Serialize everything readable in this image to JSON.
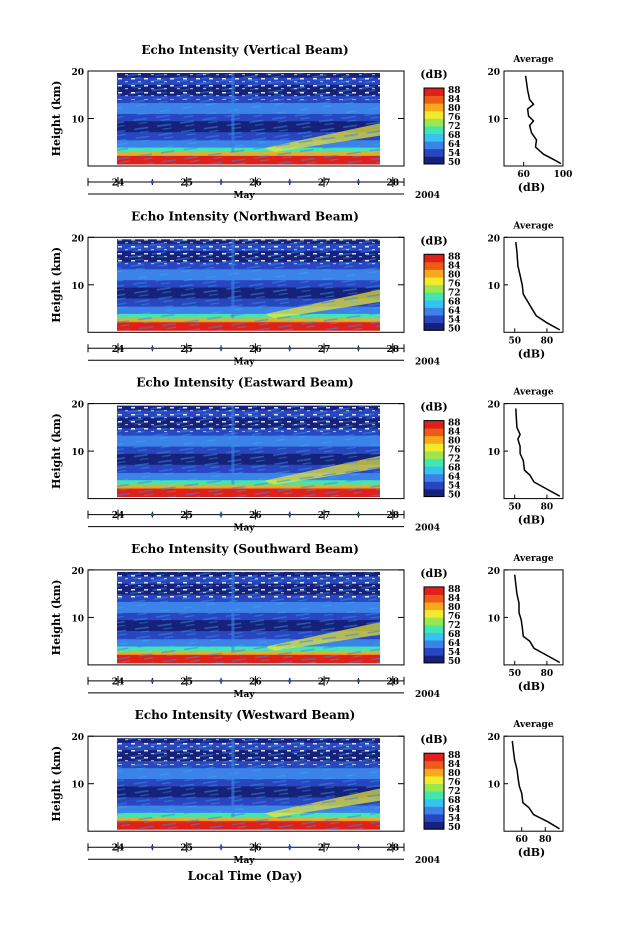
{
  "figure": {
    "x_axis_title": "Local Time (Day)",
    "month_label": "May",
    "year_label": "2004"
  },
  "colorbar": {
    "unit": "(dB)",
    "ticks": [
      "50",
      "54",
      "64",
      "68",
      "72",
      "76",
      "80",
      "84",
      "88"
    ],
    "colors": [
      "#16217a",
      "#2746bf",
      "#3b83e8",
      "#35c4f2",
      "#44e6b0",
      "#9ce64f",
      "#f2ea2c",
      "#f7a81d",
      "#ee5a17",
      "#e0201a"
    ]
  },
  "chart_data": [
    {
      "type": "heatmap",
      "title": "Echo Intensity (Vertical Beam)",
      "xlabel": "May",
      "ylabel": "Height (km)",
      "x_ticks": [
        "24",
        "25",
        "26",
        "27",
        "28"
      ],
      "y_ticks": [
        "10",
        "20"
      ],
      "xlim": [
        24,
        28.6
      ],
      "ylim": [
        0,
        20
      ],
      "colorbar_range": [
        50,
        88
      ],
      "colorbar_unit": "dB",
      "profile": {
        "title": "Average",
        "xlabel": "(dB)",
        "x_ticks": [
          "60",
          "100"
        ],
        "xlim": [
          40,
          100
        ],
        "ylim": [
          0,
          20
        ],
        "y_ticks": [
          "10",
          "20"
        ],
        "points": [
          [
            98,
            0.5
          ],
          [
            92,
            1.2
          ],
          [
            80,
            2.5
          ],
          [
            72,
            4
          ],
          [
            73,
            5.5
          ],
          [
            68,
            7
          ],
          [
            66,
            8.5
          ],
          [
            70,
            9.5
          ],
          [
            65,
            10.5
          ],
          [
            64,
            12
          ],
          [
            70,
            13
          ],
          [
            66,
            14
          ],
          [
            64,
            16
          ],
          [
            62,
            19
          ]
        ]
      }
    },
    {
      "type": "heatmap",
      "title": "Echo Intensity (Northward Beam)",
      "xlabel": "May",
      "ylabel": "Height (km)",
      "x_ticks": [
        "24",
        "25",
        "26",
        "27",
        "28"
      ],
      "y_ticks": [
        "10",
        "20"
      ],
      "xlim": [
        24,
        28.6
      ],
      "ylim": [
        0,
        20
      ],
      "colorbar_range": [
        50,
        88
      ],
      "colorbar_unit": "dB",
      "profile": {
        "title": "Average",
        "xlabel": "(dB)",
        "x_ticks": [
          "50",
          "80"
        ],
        "xlim": [
          40,
          95
        ],
        "ylim": [
          0,
          20
        ],
        "y_ticks": [
          "10",
          "20"
        ],
        "points": [
          [
            92,
            0.5
          ],
          [
            80,
            2
          ],
          [
            70,
            3.5
          ],
          [
            66,
            5
          ],
          [
            62,
            6.5
          ],
          [
            58,
            8
          ],
          [
            57,
            10
          ],
          [
            55,
            12
          ],
          [
            53,
            14
          ],
          [
            52,
            17
          ],
          [
            51,
            19
          ]
        ]
      }
    },
    {
      "type": "heatmap",
      "title": "Echo Intensity (Eastward Beam)",
      "xlabel": "May",
      "ylabel": "Height (km)",
      "x_ticks": [
        "24",
        "25",
        "26",
        "27",
        "28"
      ],
      "y_ticks": [
        "10",
        "20"
      ],
      "xlim": [
        24,
        28.6
      ],
      "ylim": [
        0,
        20
      ],
      "colorbar_range": [
        50,
        88
      ],
      "colorbar_unit": "dB",
      "profile": {
        "title": "Average",
        "xlabel": "(dB)",
        "x_ticks": [
          "50",
          "80"
        ],
        "xlim": [
          40,
          95
        ],
        "ylim": [
          0,
          20
        ],
        "y_ticks": [
          "10",
          "20"
        ],
        "points": [
          [
            92,
            0.5
          ],
          [
            80,
            2
          ],
          [
            68,
            3.5
          ],
          [
            64,
            5
          ],
          [
            59,
            6
          ],
          [
            58,
            8
          ],
          [
            55,
            9.5
          ],
          [
            55,
            11
          ],
          [
            53,
            12.5
          ],
          [
            55,
            13.5
          ],
          [
            52,
            15
          ],
          [
            51,
            19
          ]
        ]
      }
    },
    {
      "type": "heatmap",
      "title": "Echo Intensity (Southward Beam)",
      "xlabel": "May",
      "ylabel": "Height (km)",
      "x_ticks": [
        "24",
        "25",
        "26",
        "27",
        "28"
      ],
      "y_ticks": [
        "10",
        "20"
      ],
      "xlim": [
        24,
        28.6
      ],
      "ylim": [
        0,
        20
      ],
      "colorbar_range": [
        50,
        88
      ],
      "colorbar_unit": "dB",
      "profile": {
        "title": "Average",
        "xlabel": "(dB)",
        "x_ticks": [
          "50",
          "80"
        ],
        "xlim": [
          40,
          95
        ],
        "ylim": [
          0,
          20
        ],
        "y_ticks": [
          "10",
          "20"
        ],
        "points": [
          [
            92,
            0.5
          ],
          [
            80,
            2
          ],
          [
            68,
            3.5
          ],
          [
            64,
            5
          ],
          [
            58,
            6
          ],
          [
            57,
            8
          ],
          [
            56,
            9.5
          ],
          [
            54,
            11
          ],
          [
            54,
            13
          ],
          [
            52,
            15
          ],
          [
            51,
            17
          ],
          [
            50,
            19
          ]
        ]
      }
    },
    {
      "type": "heatmap",
      "title": "Echo Intensity (Westward Beam)",
      "xlabel": "May",
      "ylabel": "Height (km)",
      "x_ticks": [
        "24",
        "25",
        "26",
        "27",
        "28"
      ],
      "y_ticks": [
        "10",
        "20"
      ],
      "xlim": [
        24,
        28.6
      ],
      "ylim": [
        0,
        20
      ],
      "colorbar_range": [
        50,
        88
      ],
      "colorbar_unit": "dB",
      "profile": {
        "title": "Average",
        "xlabel": "(dB)",
        "x_ticks": [
          "60",
          "80"
        ],
        "xlim": [
          45,
          95
        ],
        "ylim": [
          0,
          20
        ],
        "y_ticks": [
          "10",
          "20"
        ],
        "points": [
          [
            92,
            0.5
          ],
          [
            82,
            2
          ],
          [
            70,
            3.5
          ],
          [
            66,
            5
          ],
          [
            61,
            6
          ],
          [
            60,
            8
          ],
          [
            58,
            9.5
          ],
          [
            57,
            11
          ],
          [
            56,
            13
          ],
          [
            54,
            15
          ],
          [
            53,
            17
          ],
          [
            52,
            19
          ]
        ]
      }
    }
  ]
}
